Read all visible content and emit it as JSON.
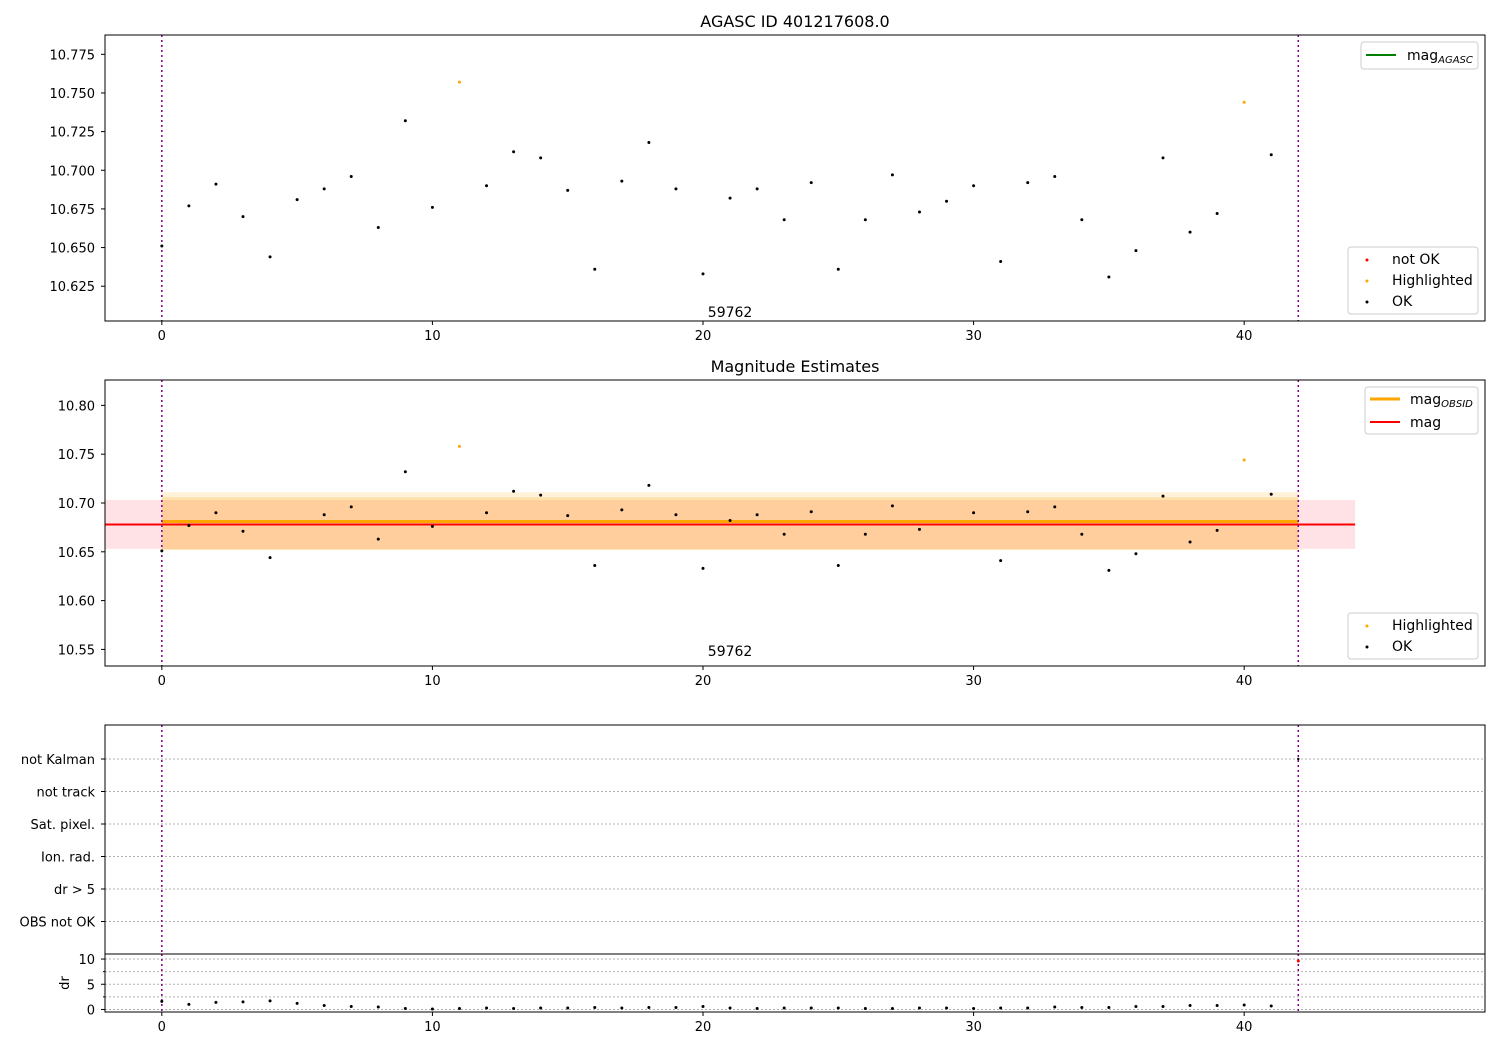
{
  "chart_data": [
    {
      "type": "scatter",
      "title": "AGASC ID 401217608.0",
      "xlim": [
        -2.1,
        48.9
      ],
      "ylim": [
        10.6025,
        10.7875
      ],
      "xticks": [
        "0",
        "10",
        "20",
        "30",
        "40"
      ],
      "yticks": [
        "10.625",
        "10.650",
        "10.675",
        "10.700",
        "10.725",
        "10.750",
        "10.775"
      ],
      "xtick_values": [
        0,
        10,
        20,
        30,
        40
      ],
      "ytick_values": [
        10.625,
        10.65,
        10.675,
        10.7,
        10.725,
        10.75,
        10.775
      ],
      "annotation": "59762",
      "annotation_at": [
        21,
        10.605
      ],
      "vlines": [
        0,
        42
      ],
      "series": [
        {
          "name": "OK",
          "color": "#000000",
          "points": [
            [
              0,
              10.651
            ],
            [
              1,
              10.677
            ],
            [
              2,
              10.691
            ],
            [
              3,
              10.67
            ],
            [
              4,
              10.644
            ],
            [
              5,
              10.681
            ],
            [
              6,
              10.688
            ],
            [
              7,
              10.696
            ],
            [
              8,
              10.663
            ],
            [
              9,
              10.732
            ],
            [
              10,
              10.676
            ],
            [
              12,
              10.69
            ],
            [
              13,
              10.712
            ],
            [
              14,
              10.708
            ],
            [
              15,
              10.687
            ],
            [
              16,
              10.636
            ],
            [
              17,
              10.693
            ],
            [
              18,
              10.718
            ],
            [
              19,
              10.688
            ],
            [
              20,
              10.633
            ],
            [
              21,
              10.682
            ],
            [
              22,
              10.688
            ],
            [
              23,
              10.668
            ],
            [
              24,
              10.692
            ],
            [
              25,
              10.636
            ],
            [
              26,
              10.668
            ],
            [
              27,
              10.697
            ],
            [
              28,
              10.673
            ],
            [
              29,
              10.68
            ],
            [
              30,
              10.69
            ],
            [
              31,
              10.641
            ],
            [
              32,
              10.692
            ],
            [
              33,
              10.696
            ],
            [
              34,
              10.668
            ],
            [
              35,
              10.631
            ],
            [
              36,
              10.648
            ],
            [
              37,
              10.708
            ],
            [
              38,
              10.66
            ],
            [
              39,
              10.672
            ],
            [
              41,
              10.71
            ]
          ]
        },
        {
          "name": "Highlighted",
          "color": "#ffa500",
          "points": [
            [
              11,
              10.757
            ],
            [
              40,
              10.744
            ]
          ]
        },
        {
          "name": "not OK",
          "color": "#ff0000",
          "points": []
        }
      ],
      "legend_top": [
        {
          "label": "mag",
          "sub": "AGASC",
          "color": "#008000"
        }
      ],
      "legend_bottom": [
        {
          "label": "not OK",
          "color": "#ff0000"
        },
        {
          "label": "Highlighted",
          "color": "#ffa500"
        },
        {
          "label": "OK",
          "color": "#000000"
        }
      ]
    },
    {
      "type": "scatter",
      "title": "Magnitude Estimates",
      "xlim": [
        -2.1,
        48.9
      ],
      "ylim": [
        10.533,
        10.826
      ],
      "xticks": [
        "0",
        "10",
        "20",
        "30",
        "40"
      ],
      "yticks": [
        "10.55",
        "10.60",
        "10.65",
        "10.70",
        "10.75",
        "10.80"
      ],
      "xtick_values": [
        0,
        10,
        20,
        30,
        40
      ],
      "ytick_values": [
        10.55,
        10.6,
        10.65,
        10.7,
        10.75,
        10.8
      ],
      "annotation": "59762",
      "annotation_at": [
        21,
        10.543
      ],
      "vlines": [
        0,
        42
      ],
      "bands": [
        {
          "x": [
            -2.1,
            44.1
          ],
          "y": [
            10.653,
            10.703
          ],
          "color": "#ffb6c1",
          "opacity": 0.4
        },
        {
          "x": [
            0,
            42
          ],
          "y": [
            10.652,
            10.711
          ],
          "color": "#ffa500",
          "opacity": 0.15
        },
        {
          "x": [
            0,
            42
          ],
          "y": [
            10.652,
            10.706
          ],
          "color": "#ffa500",
          "opacity": 0.2
        }
      ],
      "hlines": [
        {
          "name": "mag_OBSID",
          "y": 10.681,
          "x": [
            0,
            42
          ],
          "color": "#ffa500",
          "width": 3
        },
        {
          "name": "mag",
          "y": 10.678,
          "x": [
            -2.1,
            44.1
          ],
          "color": "#ff0000",
          "width": 2
        }
      ],
      "series": [
        {
          "name": "OK",
          "color": "#000000",
          "points": [
            [
              0,
              10.651
            ],
            [
              1,
              10.677
            ],
            [
              2,
              10.69
            ],
            [
              3,
              10.671
            ],
            [
              4,
              10.644
            ],
            [
              6,
              10.688
            ],
            [
              7,
              10.696
            ],
            [
              8,
              10.663
            ],
            [
              9,
              10.732
            ],
            [
              10,
              10.676
            ],
            [
              12,
              10.69
            ],
            [
              13,
              10.712
            ],
            [
              14,
              10.708
            ],
            [
              15,
              10.687
            ],
            [
              16,
              10.636
            ],
            [
              17,
              10.693
            ],
            [
              18,
              10.718
            ],
            [
              19,
              10.688
            ],
            [
              20,
              10.633
            ],
            [
              21,
              10.682
            ],
            [
              22,
              10.688
            ],
            [
              23,
              10.668
            ],
            [
              24,
              10.691
            ],
            [
              25,
              10.636
            ],
            [
              26,
              10.668
            ],
            [
              27,
              10.697
            ],
            [
              28,
              10.673
            ],
            [
              30,
              10.69
            ],
            [
              31,
              10.641
            ],
            [
              32,
              10.691
            ],
            [
              33,
              10.696
            ],
            [
              34,
              10.668
            ],
            [
              35,
              10.631
            ],
            [
              36,
              10.648
            ],
            [
              37,
              10.707
            ],
            [
              38,
              10.66
            ],
            [
              39,
              10.672
            ],
            [
              41,
              10.709
            ]
          ]
        },
        {
          "name": "Highlighted",
          "color": "#ffa500",
          "points": [
            [
              11,
              10.758
            ],
            [
              40,
              10.744
            ]
          ]
        }
      ],
      "legend_top": [
        {
          "label": "mag",
          "sub": "OBSID",
          "color": "#ffa500"
        },
        {
          "label": "mag",
          "sub": "",
          "color": "#ff0000"
        }
      ],
      "legend_bottom": [
        {
          "label": "Highlighted",
          "color": "#ffa500"
        },
        {
          "label": "OK",
          "color": "#000000"
        }
      ]
    },
    {
      "type": "scatter",
      "title": "",
      "xlim": [
        -2.1,
        48.9
      ],
      "flag_labels": [
        "not Kalman",
        "not track",
        "Sat. pixel.",
        "Ion. rad.",
        "dr > 5",
        "OBS not OK"
      ],
      "vlines": [
        0,
        42
      ],
      "flag_points": [
        [
          42,
          0
        ]
      ]
    },
    {
      "type": "scatter",
      "title": "",
      "ylabel": "dr",
      "xlim": [
        -2.1,
        48.9
      ],
      "ylim": [
        -0.5,
        11
      ],
      "xticks": [
        "0",
        "10",
        "20",
        "30",
        "40"
      ],
      "yticks": [
        "0",
        "5",
        "10"
      ],
      "xtick_values": [
        0,
        10,
        20,
        30,
        40
      ],
      "ytick_values": [
        0,
        5,
        10
      ],
      "vlines": [
        0,
        42
      ],
      "series": [
        {
          "name": "dr",
          "color": "#000000",
          "points": [
            [
              0,
              1.6
            ],
            [
              1,
              1.0
            ],
            [
              2,
              1.4
            ],
            [
              3,
              1.5
            ],
            [
              4,
              1.7
            ],
            [
              5,
              1.2
            ],
            [
              6,
              0.8
            ],
            [
              7,
              0.6
            ],
            [
              8,
              0.5
            ],
            [
              9,
              0.2
            ],
            [
              10,
              0.1
            ],
            [
              11,
              0.2
            ],
            [
              12,
              0.3
            ],
            [
              13,
              0.2
            ],
            [
              14,
              0.3
            ],
            [
              15,
              0.3
            ],
            [
              16,
              0.4
            ],
            [
              17,
              0.3
            ],
            [
              18,
              0.4
            ],
            [
              19,
              0.4
            ],
            [
              20,
              0.6
            ],
            [
              21,
              0.3
            ],
            [
              22,
              0.2
            ],
            [
              23,
              0.3
            ],
            [
              24,
              0.3
            ],
            [
              25,
              0.3
            ],
            [
              26,
              0.2
            ],
            [
              27,
              0.2
            ],
            [
              28,
              0.3
            ],
            [
              29,
              0.3
            ],
            [
              30,
              0.2
            ],
            [
              31,
              0.3
            ],
            [
              32,
              0.3
            ],
            [
              33,
              0.5
            ],
            [
              34,
              0.4
            ],
            [
              35,
              0.4
            ],
            [
              36,
              0.6
            ],
            [
              37,
              0.6
            ],
            [
              38,
              0.8
            ],
            [
              39,
              0.8
            ],
            [
              40,
              0.9
            ],
            [
              41,
              0.7
            ]
          ]
        },
        {
          "name": "dr flagged",
          "color": "#ff0000",
          "points": [
            [
              42,
              9.6
            ]
          ]
        }
      ]
    }
  ]
}
